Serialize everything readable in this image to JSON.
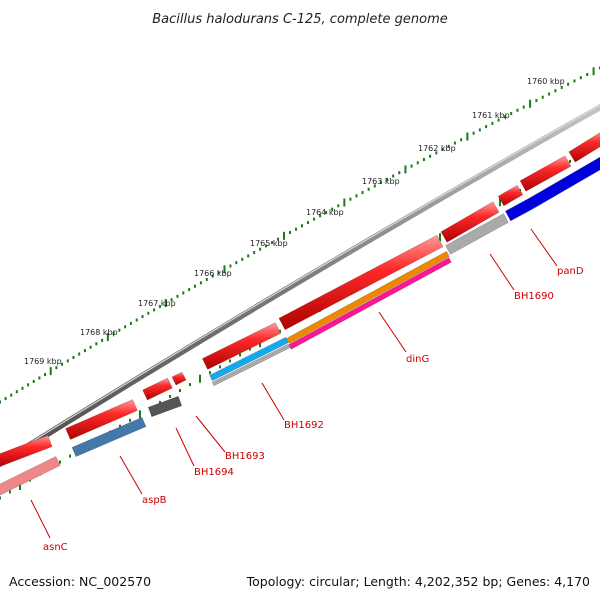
{
  "title": "Bacillus halodurans C-125, complete genome",
  "kbp_labels": [
    "1760 kbp",
    "1761 kbp",
    "1762 kbp",
    "1763 kbp",
    "1764 kbp",
    "1765 kbp",
    "1766 kbp",
    "1767 kbp",
    "1768 kbp",
    "1769 kbp"
  ],
  "genes": [
    "panD",
    "BH1690",
    "dinG",
    "BH1692",
    "BH1693",
    "BH1694",
    "aspB",
    "asnC"
  ],
  "footer": {
    "accession": "Accession: NC_002570",
    "topology": "Topology: circular; Length: 4,202,352 bp; Genes: 4,170"
  },
  "colors": {
    "feature_red": "#ee0000",
    "backbone": "#777777",
    "tick": "#1a7a1a",
    "label_red": "#cc0000",
    "pand": "#0000dd",
    "bh1690": "#aaaaaa",
    "ding_top": "#ee8800",
    "ding_bottom": "#ff1493",
    "bh1692_top": "#11aaee",
    "bh1692_bottom": "#aaaaaa",
    "bh1694": "#555555",
    "aspb": "#4477aa",
    "asnc": "#ee8888"
  }
}
